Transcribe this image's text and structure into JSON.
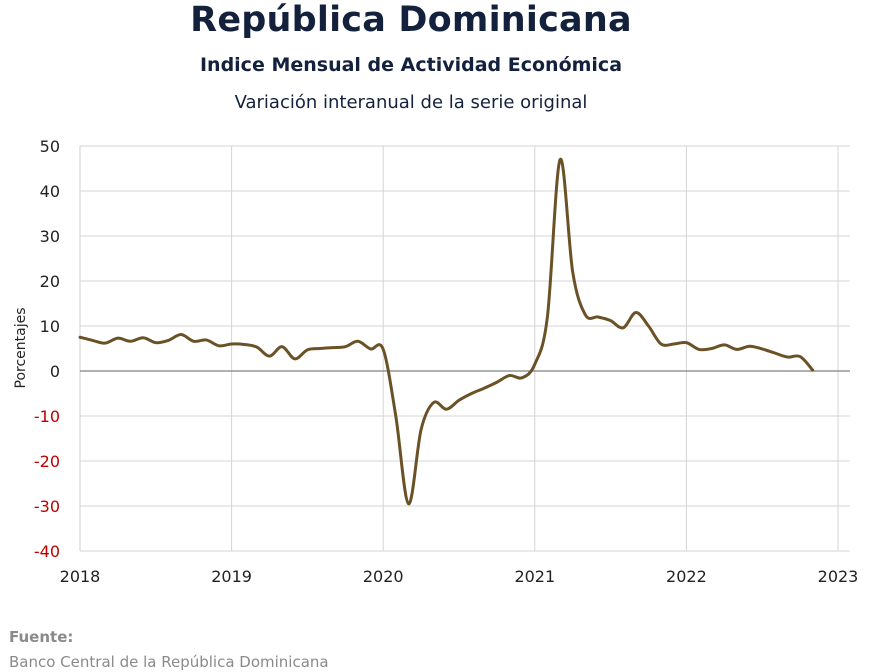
{
  "chart_data": {
    "type": "line",
    "title": "República Dominicana",
    "subtitle": "Indice Mensual de  Actividad Económica",
    "subtitle2": "Variación interanual de la serie original",
    "xlabel": "",
    "ylabel": "Porcentajes",
    "xlim": [
      2018,
      2023
    ],
    "ylim": [
      -40,
      50
    ],
    "x_ticks": [
      "2018",
      "2019",
      "2020",
      "2021",
      "2022",
      "2023"
    ],
    "y_ticks": [
      "50",
      "40",
      "30",
      "20",
      "10",
      "0",
      "-10",
      "-20",
      "-30",
      "-40"
    ],
    "grid": true,
    "negative_tick_color": "#c00000",
    "positive_tick_color": "#222222",
    "line_color": "#6b5226",
    "series": [
      {
        "name": "",
        "x": [
          2018.0,
          2018.083,
          2018.167,
          2018.25,
          2018.333,
          2018.417,
          2018.5,
          2018.583,
          2018.667,
          2018.75,
          2018.833,
          2018.917,
          2019.0,
          2019.083,
          2019.167,
          2019.25,
          2019.333,
          2019.417,
          2019.5,
          2019.583,
          2019.667,
          2019.75,
          2019.833,
          2019.917,
          2020.0,
          2020.083,
          2020.167,
          2020.25,
          2020.333,
          2020.417,
          2020.5,
          2020.583,
          2020.667,
          2020.75,
          2020.833,
          2020.917,
          2021.0,
          2021.083,
          2021.167,
          2021.25,
          2021.333,
          2021.417,
          2021.5,
          2021.583,
          2021.667,
          2021.75,
          2021.833,
          2021.917,
          2022.0,
          2022.083,
          2022.167,
          2022.25,
          2022.333,
          2022.417,
          2022.5,
          2022.583,
          2022.667,
          2022.75,
          2022.833,
          2022.917,
          2023.0
        ],
        "y": [
          7.5,
          6.8,
          6.2,
          7.3,
          6.6,
          7.4,
          6.3,
          6.8,
          8.1,
          6.6,
          6.9,
          5.6,
          6.0,
          5.9,
          5.3,
          3.3,
          5.4,
          2.7,
          4.7,
          5.0,
          5.2,
          5.4,
          6.6,
          4.9,
          4.8,
          -10.0,
          -29.5,
          -13.0,
          -7.0,
          -8.5,
          -6.5,
          -5.0,
          -3.8,
          -2.5,
          -1.0,
          -1.5,
          1.5,
          12.0,
          47.0,
          22.0,
          12.5,
          12.0,
          11.2,
          9.6,
          13.0,
          10.0,
          6.0,
          6.0,
          6.3,
          4.8,
          5.0,
          5.8,
          4.8,
          5.5,
          4.9,
          4.0,
          3.1,
          3.2,
          0.2,
          null,
          null
        ]
      }
    ]
  },
  "source": {
    "label": "Fuente:",
    "text": "Banco Central de la República Dominicana"
  }
}
